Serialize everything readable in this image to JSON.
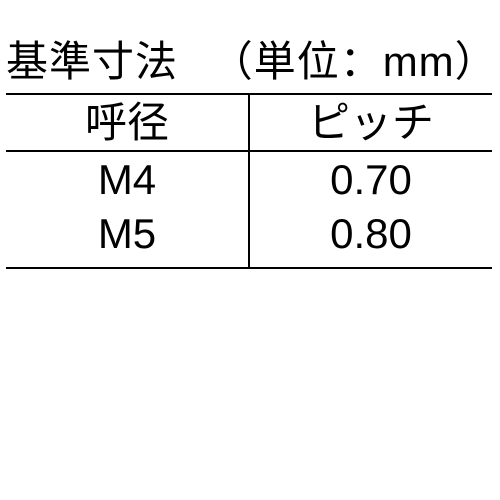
{
  "table": {
    "title": "基準寸法",
    "unit_label": "（単位：mm）",
    "columns": [
      {
        "key": "diameter",
        "label": "呼径"
      },
      {
        "key": "pitch",
        "label": "ピッチ"
      }
    ],
    "rows": [
      {
        "diameter": "M4",
        "pitch": "0.70"
      },
      {
        "diameter": "M5",
        "pitch": "0.80"
      }
    ],
    "colors": {
      "background": "#ffffff",
      "text": "#000000",
      "border": "#000000"
    },
    "font": {
      "size_pt": 32,
      "weight": "regular"
    }
  }
}
